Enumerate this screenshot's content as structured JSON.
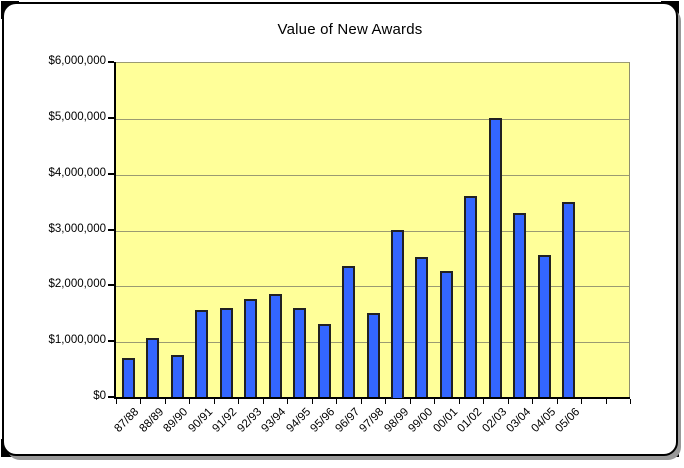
{
  "window": {
    "frame_border_color": "#000000",
    "frame_background": "#ffffff",
    "shadow_color": "#999999",
    "corner_notch_color": "#000000"
  },
  "chart_data": {
    "type": "bar",
    "title": "Value of New Awards",
    "xlabel": "",
    "ylabel": "",
    "categories": [
      "87/88",
      "88/89",
      "89/90",
      "90/91",
      "91/92",
      "92/93",
      "93/94",
      "94/95",
      "95/96",
      "96/97",
      "97/98",
      "98/99",
      "99/00",
      "00/01",
      "01/02",
      "02/03",
      "03/04",
      "04/05",
      "05/06"
    ],
    "values": [
      700000,
      1050000,
      750000,
      1550000,
      1600000,
      1750000,
      1850000,
      1600000,
      1300000,
      2350000,
      1500000,
      3000000,
      2500000,
      2250000,
      3600000,
      5000000,
      3300000,
      2550000,
      3500000
    ],
    "empty_trailing_categories": 2,
    "ylim": [
      0,
      6000000
    ],
    "ytick_step": 1000000,
    "ytick_labels": [
      "$0",
      "$1,000,000",
      "$2,000,000",
      "$3,000,000",
      "$4,000,000",
      "$5,000,000",
      "$6,000,000"
    ],
    "grid": true,
    "legend": false,
    "plot_background": "#ffff99",
    "gridline_color": "#9b9b72",
    "bar_fill": "#3366ff",
    "bar_border": "#212121",
    "axis_color": "#000000"
  }
}
